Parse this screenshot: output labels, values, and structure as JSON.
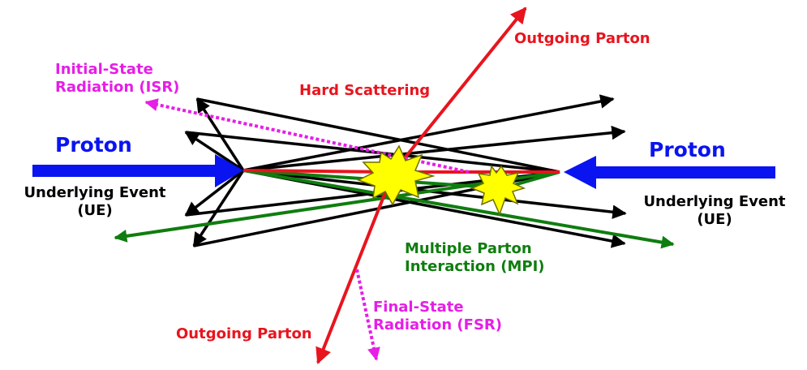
{
  "colors": {
    "proton": "#0a14f0",
    "parton": "#e8141e",
    "radiation": "#e61ee6",
    "mpi": "#0f7d0f",
    "underlying": "#000000",
    "flash_fill": "#ffff00",
    "flash_stroke": "#6e6e00"
  },
  "labels": {
    "outgoing_parton_top": "Outgoing Parton",
    "outgoing_parton_bottom": "Outgoing Parton",
    "isr": [
      "Initial-State",
      "Radiation (ISR)"
    ],
    "hard_scattering": "Hard Scattering",
    "proton_left": "Proton",
    "proton_right": "Proton",
    "ue_left": [
      "Underlying Event",
      "(UE)"
    ],
    "ue_right": [
      "Underlying Event",
      "(UE)"
    ],
    "mpi": [
      "Multiple Parton",
      "Interaction (MPI)"
    ],
    "fsr": [
      "Final-State",
      "Radiation (FSR)"
    ]
  },
  "icons": [
    "hard-scatter-flash-icon",
    "mpi-flash-icon"
  ]
}
